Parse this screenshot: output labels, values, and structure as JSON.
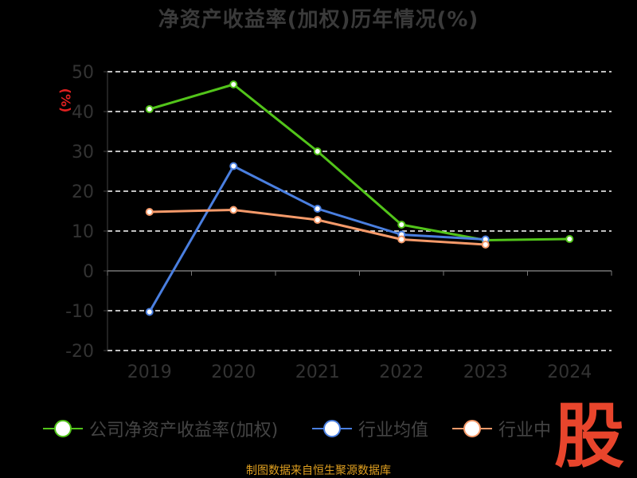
{
  "chart_data": {
    "type": "line",
    "title": "净资产收益率(加权)历年情况(%)",
    "ylabel": "(%)",
    "categories": [
      "2019",
      "2020",
      "2021",
      "2022",
      "2023",
      "2024"
    ],
    "ylim": [
      -20,
      50
    ],
    "yticks": [
      50,
      40,
      30,
      20,
      10,
      0,
      -10,
      -20
    ],
    "grid": true,
    "legend_position": "bottom",
    "series": [
      {
        "name": "公司净资产收益率(加权)",
        "color": "#52c41a",
        "values": [
          40.6,
          46.8,
          30.0,
          11.6,
          7.7,
          8.0
        ]
      },
      {
        "name": "行业均值",
        "color": "#4a7fe0",
        "values": [
          -10.3,
          26.3,
          15.6,
          9.1,
          7.9,
          null
        ]
      },
      {
        "name": "行业中位数",
        "color": "#f59a6a",
        "values": [
          14.8,
          15.3,
          12.8,
          7.9,
          6.6,
          null
        ]
      }
    ]
  },
  "legend_labels": [
    "公司净资产收益率(加权)",
    "行业均值",
    "行业中"
  ],
  "watermark": "股",
  "source": "制图数据来自恒生聚源数据库"
}
